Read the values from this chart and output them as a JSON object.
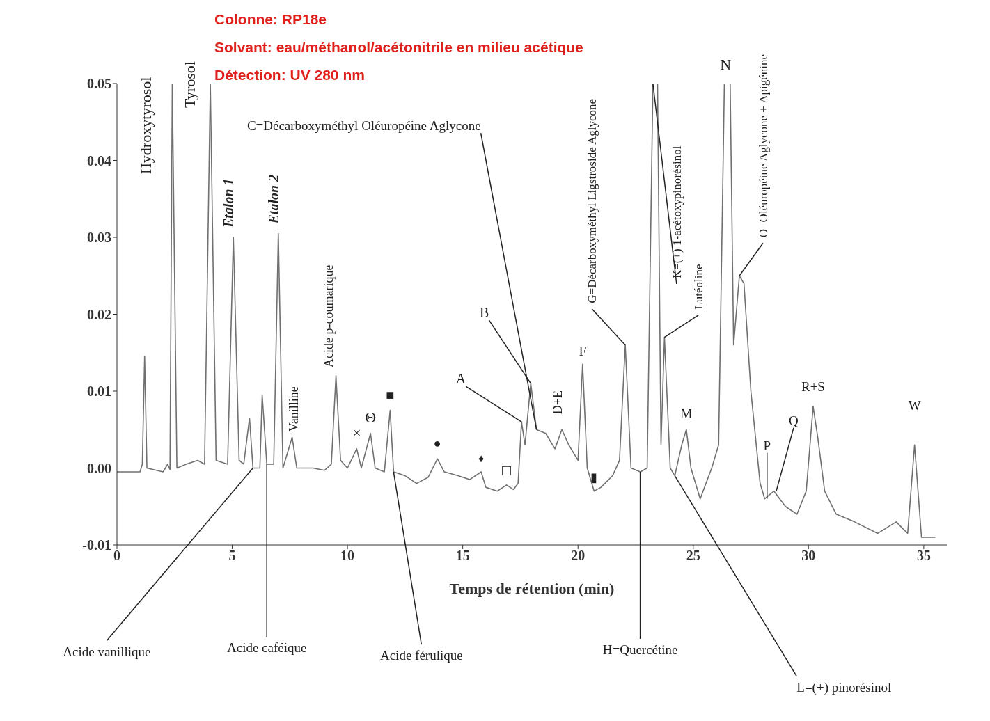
{
  "chart_data": {
    "type": "line",
    "xlabel": "Temps de rétention (min)",
    "color": "#707070",
    "x": [
      0,
      1.0,
      1.1,
      1.2,
      1.3,
      2.0,
      2.2,
      2.3,
      2.4,
      2.6,
      3.0,
      3.5,
      3.8,
      4.05,
      4.3,
      4.8,
      5.05,
      5.3,
      5.5,
      5.75,
      5.9,
      6.2,
      6.3,
      6.5,
      6.8,
      7.0,
      7.2,
      7.6,
      7.8,
      8.5,
      9.0,
      9.3,
      9.5,
      9.7,
      10.0,
      10.4,
      10.6,
      11.0,
      11.2,
      11.6,
      11.85,
      12.0,
      12.5,
      13.0,
      13.5,
      13.9,
      14.2,
      14.8,
      15.3,
      15.8,
      16.0,
      16.5,
      16.9,
      17.2,
      17.4,
      17.55,
      17.7,
      17.95,
      18.2,
      18.6,
      19.0,
      19.3,
      19.6,
      20.0,
      20.2,
      20.4,
      20.7,
      21.0,
      21.5,
      21.8,
      22.05,
      22.3,
      22.7,
      23.0,
      23.25,
      23.45,
      23.6,
      23.75,
      24.0,
      24.2,
      24.5,
      24.7,
      24.9,
      25.3,
      25.8,
      26.1,
      26.35,
      26.6,
      26.75,
      27.0,
      27.2,
      27.5,
      27.9,
      28.1,
      28.5,
      29.0,
      29.5,
      29.9,
      30.2,
      30.4,
      30.7,
      31.2,
      32.0,
      33.0,
      33.8,
      34.3,
      34.6,
      34.9,
      35.5
    ],
    "values": [
      -0.0005,
      -0.0005,
      0.0005,
      0.0145,
      0,
      -0.0005,
      0.0005,
      -0.0002,
      0.05,
      0,
      0.0005,
      0.001,
      0.0005,
      0.05,
      0.001,
      0.0005,
      0.03,
      0.001,
      0.0005,
      0.0065,
      0,
      0,
      0.0095,
      0.0005,
      0.0005,
      0.0305,
      0,
      0.004,
      0,
      0,
      -0.0003,
      0.0005,
      0.012,
      0.001,
      0,
      0.0025,
      0,
      0.0045,
      0,
      -0.0005,
      0.0075,
      -0.0005,
      -0.001,
      -0.002,
      -0.0012,
      0.0012,
      -0.0005,
      -0.001,
      -0.0015,
      -0.0005,
      -0.0025,
      -0.003,
      -0.0022,
      -0.0028,
      -0.002,
      0.006,
      0.003,
      0.011,
      0.005,
      0.0045,
      0.0025,
      0.005,
      0.003,
      0.001,
      0.0135,
      0,
      -0.003,
      -0.0025,
      -0.001,
      0.001,
      0.016,
      0,
      -0.0005,
      0,
      0.05,
      0.05,
      0.003,
      0.017,
      0,
      -0.001,
      0.003,
      0.005,
      0,
      -0.004,
      0,
      0.003,
      0.05,
      0.05,
      0.016,
      0.025,
      0.024,
      0.01,
      -0.002,
      -0.004,
      -0.003,
      -0.005,
      -0.006,
      -0.003,
      0.008,
      0.004,
      -0.003,
      -0.006,
      -0.007,
      -0.0085,
      -0.007,
      -0.0085,
      0.003,
      -0.009,
      -0.009
    ],
    "xlim": [
      0,
      36
    ],
    "xticks": [
      0,
      5,
      10,
      15,
      20,
      25,
      30,
      35
    ],
    "ylim": [
      -0.01,
      0.05
    ],
    "yticks": [
      -0.01,
      {
        "value": 0,
        "label": "0.00"
      },
      0.01,
      0.02,
      0.03,
      0.04,
      0.05
    ],
    "annotations": [
      "Colonne: RP18e",
      "Solvant: eau/méthanol/acétonitrile en milieu acétique",
      "Détection: UV 280 nm",
      {
        "text": "Hydroxytyrosol",
        "x": 2.4,
        "y": 0.05
      },
      {
        "text": "Tyrosol",
        "x": 4.05,
        "y": 0.05
      },
      {
        "text": "Etalon 1",
        "x": 5.05,
        "y": 0.03
      },
      {
        "text": "Etalon 2",
        "x": 7.0,
        "y": 0.0305
      },
      {
        "text": "Vanilline",
        "x": 7.6,
        "y": 0.004
      },
      {
        "text": "Acide p-coumarique",
        "x": 9.5,
        "y": 0.012
      },
      {
        "text": "×",
        "x": 10.4,
        "y": 0.0025
      },
      {
        "text": "Θ",
        "x": 11.0,
        "y": 0.0045
      },
      {
        "text": "■",
        "x": 11.85,
        "y": 0.0075
      },
      {
        "text": "●",
        "x": 13.9,
        "y": 0.0012
      },
      {
        "text": "♦",
        "x": 15.8,
        "y": -0.0005
      },
      {
        "text": "□",
        "x": 16.9,
        "y": -0.0022
      },
      {
        "text": "▮",
        "x": 20.7,
        "y": -0.003
      },
      {
        "text": "A",
        "x": 17.55,
        "y": 0.006
      },
      {
        "text": "B",
        "x": 17.95,
        "y": 0.011
      },
      {
        "text": "C=Décarboxyméthyl Oléuropéine Aglycone",
        "x": 18.2,
        "y": 0.005
      },
      {
        "text": "D+E",
        "x": 19.3,
        "y": 0.005
      },
      {
        "text": "F",
        "x": 20.2,
        "y": 0.0135
      },
      {
        "text": "G=Décarboxyméthyl Ligstroside Aglycone",
        "x": 22.05,
        "y": 0.016
      },
      {
        "text": "H=Quercétine",
        "x": 22.7,
        "y": -0.0005
      },
      {
        "text": "K=(+) 1-acétoxypinorésinol",
        "x": 23.25,
        "y": 0.05
      },
      {
        "text": "Lutéoline",
        "x": 23.75,
        "y": 0.017
      },
      {
        "text": "L=(+) pinorésinol",
        "x": 24.2,
        "y": -0.001
      },
      {
        "text": "M",
        "x": 24.7,
        "y": 0.005
      },
      {
        "text": "N",
        "x": 26.4,
        "y": 0.05
      },
      {
        "text": "O=Oléuropéine Aglycone + Apigénine",
        "x": 27.0,
        "y": 0.025
      },
      {
        "text": "P",
        "x": 28.2,
        "y": -0.004
      },
      {
        "text": "Q",
        "x": 28.6,
        "y": -0.003
      },
      {
        "text": "R+S",
        "x": 30.2,
        "y": 0.008
      },
      {
        "text": "W",
        "x": 34.6,
        "y": 0.003
      },
      {
        "text": "Acide vanillique",
        "x": 5.9,
        "y": 0
      },
      {
        "text": "Acide caféique",
        "x": 6.5,
        "y": 0.0005
      },
      {
        "text": "Acide férulique",
        "x": 12.0,
        "y": -0.0005
      }
    ]
  }
}
